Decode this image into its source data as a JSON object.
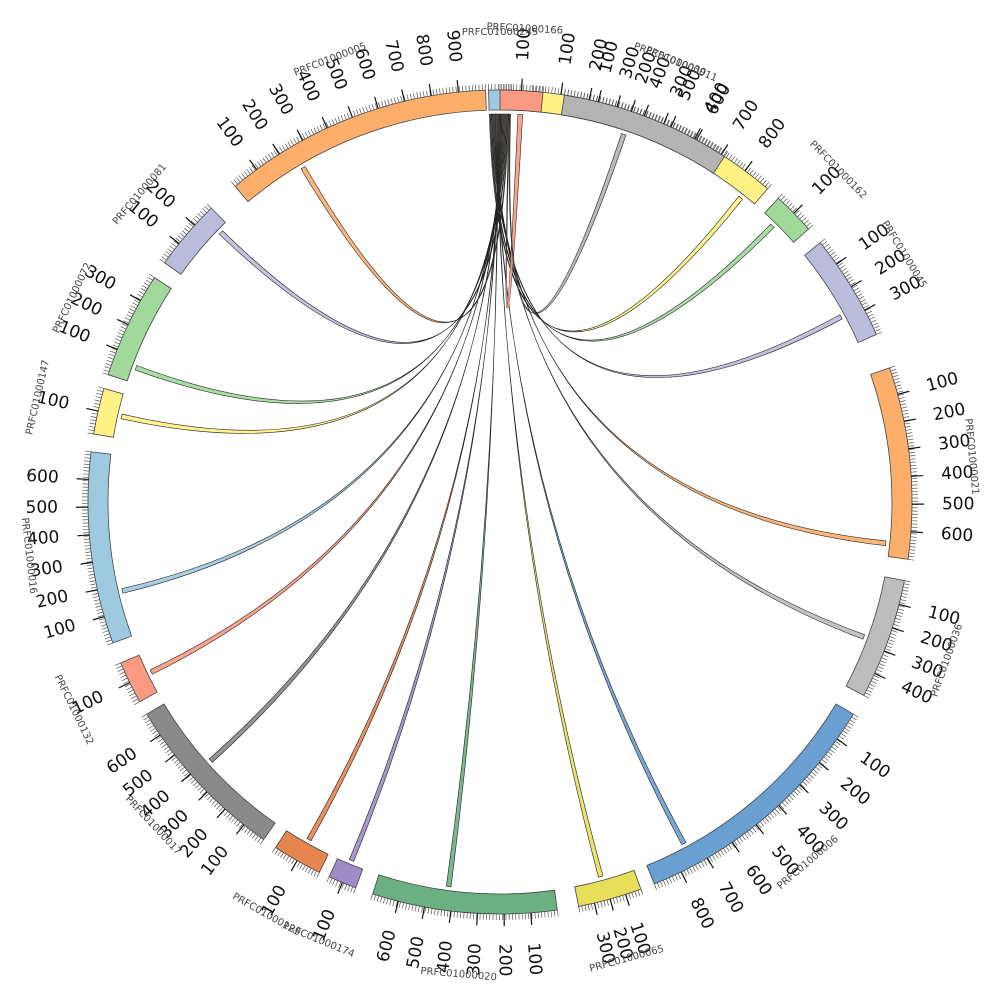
{
  "diagram": {
    "hub": {
      "id": "PRFC01000245",
      "color": "#9ecae1"
    },
    "segments": [
      {
        "id": "PRFC01000011",
        "color": "#fff284",
        "ticks": [
          "100",
          "200",
          "300",
          "400",
          "500",
          "600",
          "700",
          "800"
        ]
      },
      {
        "id": "PRFC01000162",
        "color": "#a1d99b",
        "ticks": [
          "100"
        ]
      },
      {
        "id": "PRFC01000045",
        "color": "#bcbddc",
        "ticks": [
          "100",
          "200",
          "300"
        ]
      },
      {
        "id": "PRFC01000021",
        "color": "#fdae6b",
        "ticks": [
          "100",
          "200",
          "300",
          "400",
          "500",
          "600"
        ]
      },
      {
        "id": "PRFC01000036",
        "color": "#bdbdbd",
        "ticks": [
          "100",
          "200",
          "300",
          "400"
        ]
      },
      {
        "id": "PRFC01000006",
        "color": "#6a9fd1",
        "ticks": [
          "100",
          "200",
          "300",
          "400",
          "500",
          "600",
          "700",
          "800"
        ]
      },
      {
        "id": "PRFC01000065",
        "color": "#e7de5a",
        "ticks": [
          "100",
          "200",
          "300"
        ]
      },
      {
        "id": "PRFC01000020",
        "color": "#6ab081",
        "ticks": [
          "100",
          "200",
          "300",
          "400",
          "500",
          "600"
        ]
      },
      {
        "id": "PRFC01000174",
        "color": "#9e8cc6",
        "ticks": [
          "100"
        ]
      },
      {
        "id": "PRFC01000129",
        "color": "#e6854e",
        "ticks": [
          "100"
        ]
      },
      {
        "id": "PRFC01000017",
        "color": "#8a8a8a",
        "ticks": [
          "100",
          "200",
          "300",
          "400",
          "500",
          "600"
        ]
      },
      {
        "id": "PRFC01000132",
        "color": "#fb9a82",
        "ticks": [
          "100"
        ]
      },
      {
        "id": "PRFC01000016",
        "color": "#9ecae1",
        "ticks": [
          "100",
          "200",
          "300",
          "400",
          "500",
          "600"
        ]
      },
      {
        "id": "PRFC01000147",
        "color": "#fff284",
        "ticks": [
          "100"
        ]
      },
      {
        "id": "PRFC01000072",
        "color": "#a1d99b",
        "ticks": [
          "100",
          "200",
          "300"
        ]
      },
      {
        "id": "PRFC01000081",
        "color": "#bcbddc",
        "ticks": [
          "100",
          "200"
        ]
      },
      {
        "id": "PRFC01000005",
        "color": "#fdae6b",
        "ticks": [
          "100",
          "200",
          "300",
          "400",
          "500",
          "600",
          "700",
          "800",
          "900"
        ]
      },
      {
        "id": "PRFC01000166",
        "color": "#fb9a82",
        "ticks": [
          "100"
        ]
      },
      {
        "id": "PRFC01000039",
        "color": "#b4b4b4",
        "ticks": [
          "100",
          "200",
          "300",
          "400"
        ]
      }
    ]
  }
}
